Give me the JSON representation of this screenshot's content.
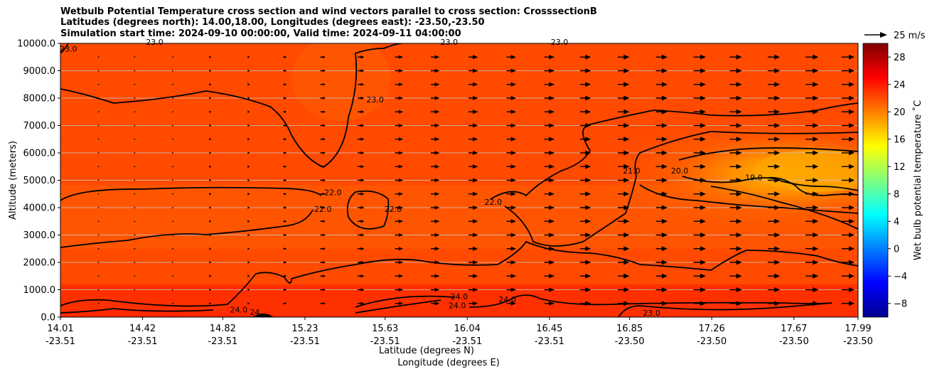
{
  "titles": {
    "line1": "Wetbulb Potential Temperature cross section and wind vectors parallel to cross section: CrosssectionB",
    "line2": "Latitudes (degrees north): 14.00,18.00, Longitudes (degrees east): -23.50,-23.50",
    "line3": "Simulation start time: 2024-09-10 00:00:00, Valid time: 2024-09-11 04:00:00"
  },
  "chart_data": {
    "type": "heatmap",
    "subtype": "filled contour cross section with wind vectors",
    "ylabel": "Altitude (meters)",
    "xlabel_line1": "Latitude (degrees N)",
    "xlabel_line2": "Longitude (degrees E)",
    "ylim": [
      0,
      10000
    ],
    "y_ticks": [
      "0.0",
      "1000.0",
      "2000.0",
      "3000.0",
      "4000.0",
      "5000.0",
      "6000.0",
      "7000.0",
      "8000.0",
      "9000.0",
      "10000.0"
    ],
    "x_ticks": [
      {
        "lat": "14.01",
        "lon": "-23.51"
      },
      {
        "lat": "14.42",
        "lon": "-23.51"
      },
      {
        "lat": "14.82",
        "lon": "-23.51"
      },
      {
        "lat": "15.23",
        "lon": "-23.51"
      },
      {
        "lat": "15.63",
        "lon": "-23.51"
      },
      {
        "lat": "16.04",
        "lon": "-23.51"
      },
      {
        "lat": "16.45",
        "lon": "-23.51"
      },
      {
        "lat": "16.85",
        "lon": "-23.50"
      },
      {
        "lat": "17.26",
        "lon": "-23.50"
      },
      {
        "lat": "17.67",
        "lon": "-23.50"
      },
      {
        "lat": "17.99",
        "lon": "-23.50"
      }
    ],
    "xlim": [
      14.01,
      17.99
    ],
    "grid": "horizontal",
    "colorbar": {
      "label": "Wet bulb potential temperature ˚C",
      "ticks": [
        "28",
        "24",
        "20",
        "16",
        "12",
        "8",
        "4",
        "0",
        "−4",
        "−8"
      ],
      "range": [
        -10,
        30
      ],
      "colormap": "jet"
    },
    "wind_key": {
      "label": "25 m/s"
    },
    "contour_labels": [
      {
        "text": "24.0",
        "lat": 14.9,
        "alt": 170
      },
      {
        "text": "24",
        "lat": 14.98,
        "alt": 80
      },
      {
        "text": "22.0",
        "lat": 15.37,
        "alt": 4450
      },
      {
        "text": "22.0",
        "lat": 15.32,
        "alt": 3850
      },
      {
        "text": "22.0",
        "lat": 15.67,
        "alt": 3850
      },
      {
        "text": "23.0",
        "lat": 15.58,
        "alt": 7850
      },
      {
        "text": "24.0",
        "lat": 16.0,
        "alt": 650
      },
      {
        "text": "24.0",
        "lat": 15.99,
        "alt": 330
      },
      {
        "text": "24.0",
        "lat": 16.24,
        "alt": 550
      },
      {
        "text": "22.0",
        "lat": 16.17,
        "alt": 4100
      },
      {
        "text": "21.0",
        "lat": 16.86,
        "alt": 5250
      },
      {
        "text": "20.0",
        "lat": 17.1,
        "alt": 5250
      },
      {
        "text": "19.0",
        "lat": 17.47,
        "alt": 5000
      },
      {
        "text": "23.0",
        "lat": 16.96,
        "alt": 50
      },
      {
        "text": "23.0",
        "lat": 14.48,
        "alt": 9950
      },
      {
        "text": "23.0",
        "lat": 14.05,
        "alt": 9700
      },
      {
        "text": "23.0",
        "lat": 15.95,
        "alt": 9950
      },
      {
        "text": "23.0",
        "lat": 16.5,
        "alt": 9950
      }
    ],
    "wind_vectors": {
      "lat_columns": [
        14.01,
        14.2,
        14.38,
        14.57,
        14.76,
        14.95,
        15.13,
        15.32,
        15.51,
        15.7,
        15.88,
        16.07,
        16.26,
        16.45,
        16.63,
        16.82,
        17.01,
        17.2,
        17.38,
        17.57,
        17.76,
        17.94
      ],
      "alt_rows": [
        500,
        1000,
        1500,
        2000,
        2500,
        3000,
        3500,
        4000,
        4500,
        5000,
        5500,
        6000,
        6500,
        7000,
        7500,
        8000,
        8500,
        9000,
        9500
      ],
      "speed_by_column_ms": [
        0,
        1,
        1,
        1,
        2,
        3,
        5,
        8,
        10,
        12,
        13,
        14,
        14,
        15,
        16,
        17,
        17,
        18,
        18,
        18,
        19,
        19
      ],
      "direction": "east along section (positive)"
    }
  }
}
